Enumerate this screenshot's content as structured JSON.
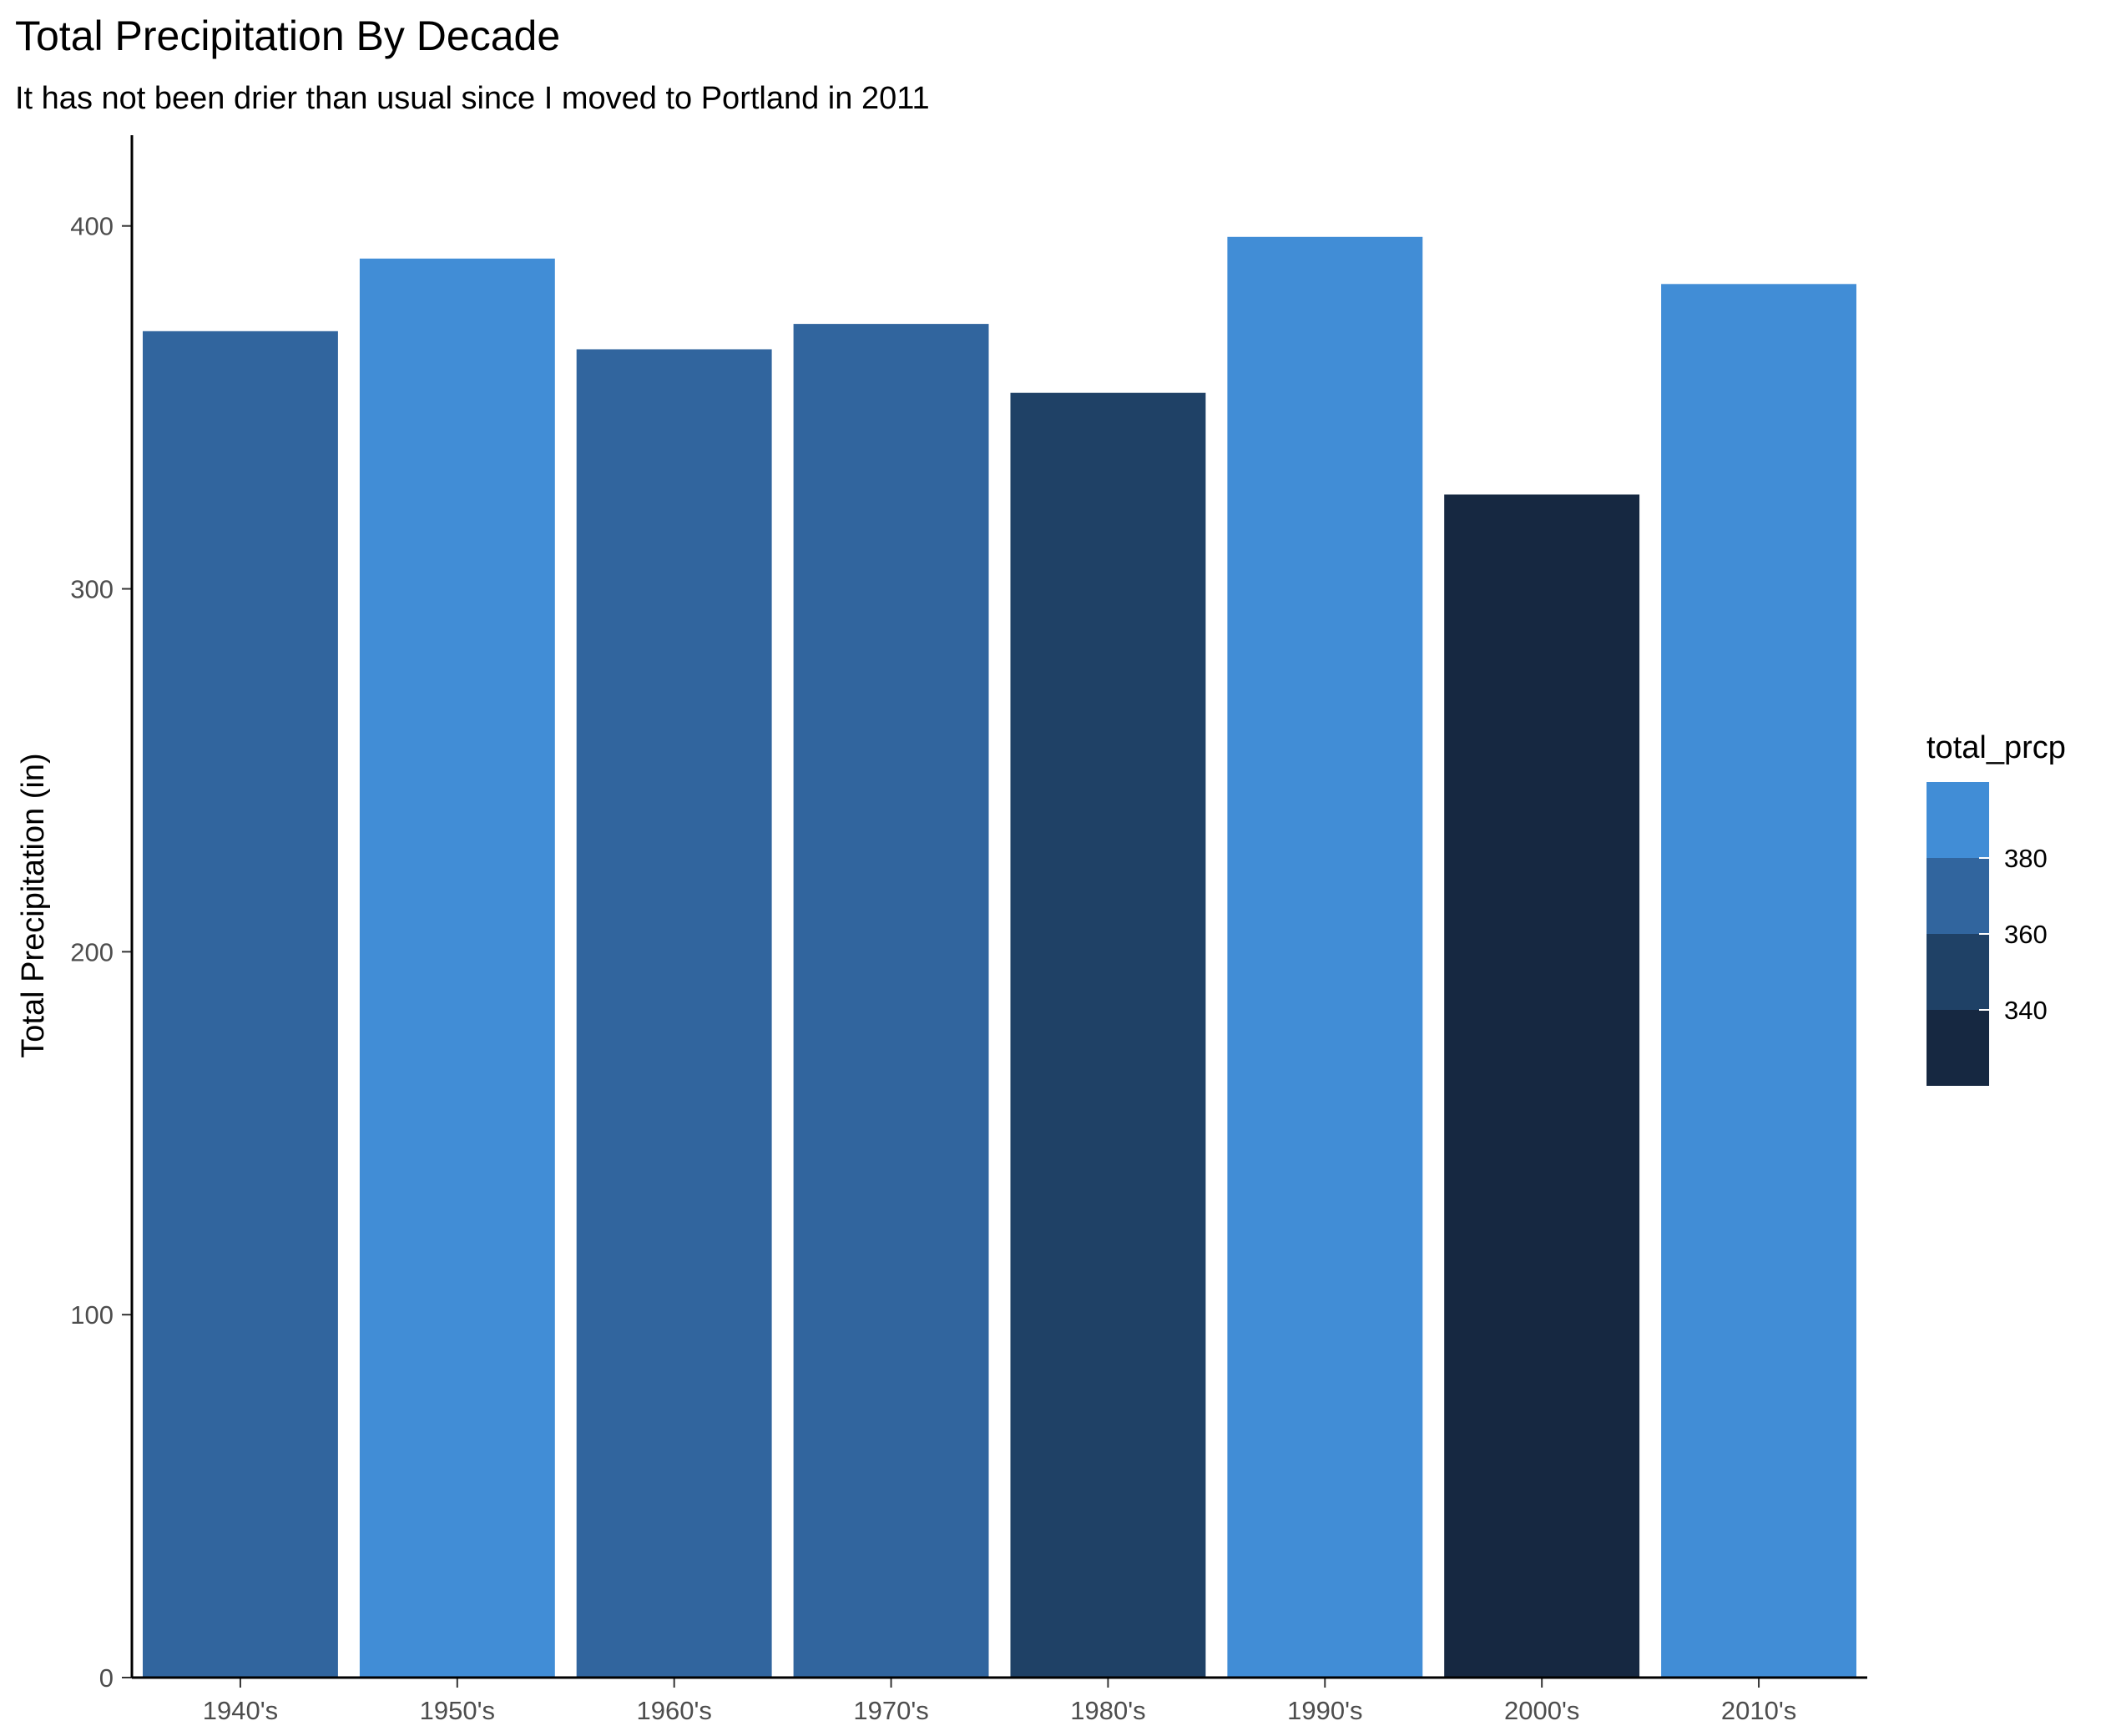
{
  "chart_data": {
    "type": "bar",
    "title": "Total Precipitation By Decade",
    "subtitle": "It has not been drier than usual since I moved to Portland in 2011",
    "xlabel": "",
    "ylabel": "Total Precipitation (in)",
    "categories": [
      "1940's",
      "1950's",
      "1960's",
      "1970's",
      "1980's",
      "1990's",
      "2000's",
      "2010's"
    ],
    "values": [
      371,
      391,
      366,
      373,
      354,
      397,
      326,
      384
    ],
    "ylim": [
      0,
      425
    ],
    "yticks": [
      0,
      100,
      200,
      300,
      400
    ],
    "grid": false,
    "legend": {
      "title": "total_prcp",
      "position": "right",
      "labels": [
        "380",
        "360",
        "340"
      ],
      "colors": [
        "#418DD6",
        "#31659E",
        "#1F4166",
        "#162841"
      ]
    },
    "colors": {
      "high": "#418DD6",
      "mid_high": "#31659E",
      "mid_low": "#1F4166",
      "low": "#162841"
    }
  }
}
